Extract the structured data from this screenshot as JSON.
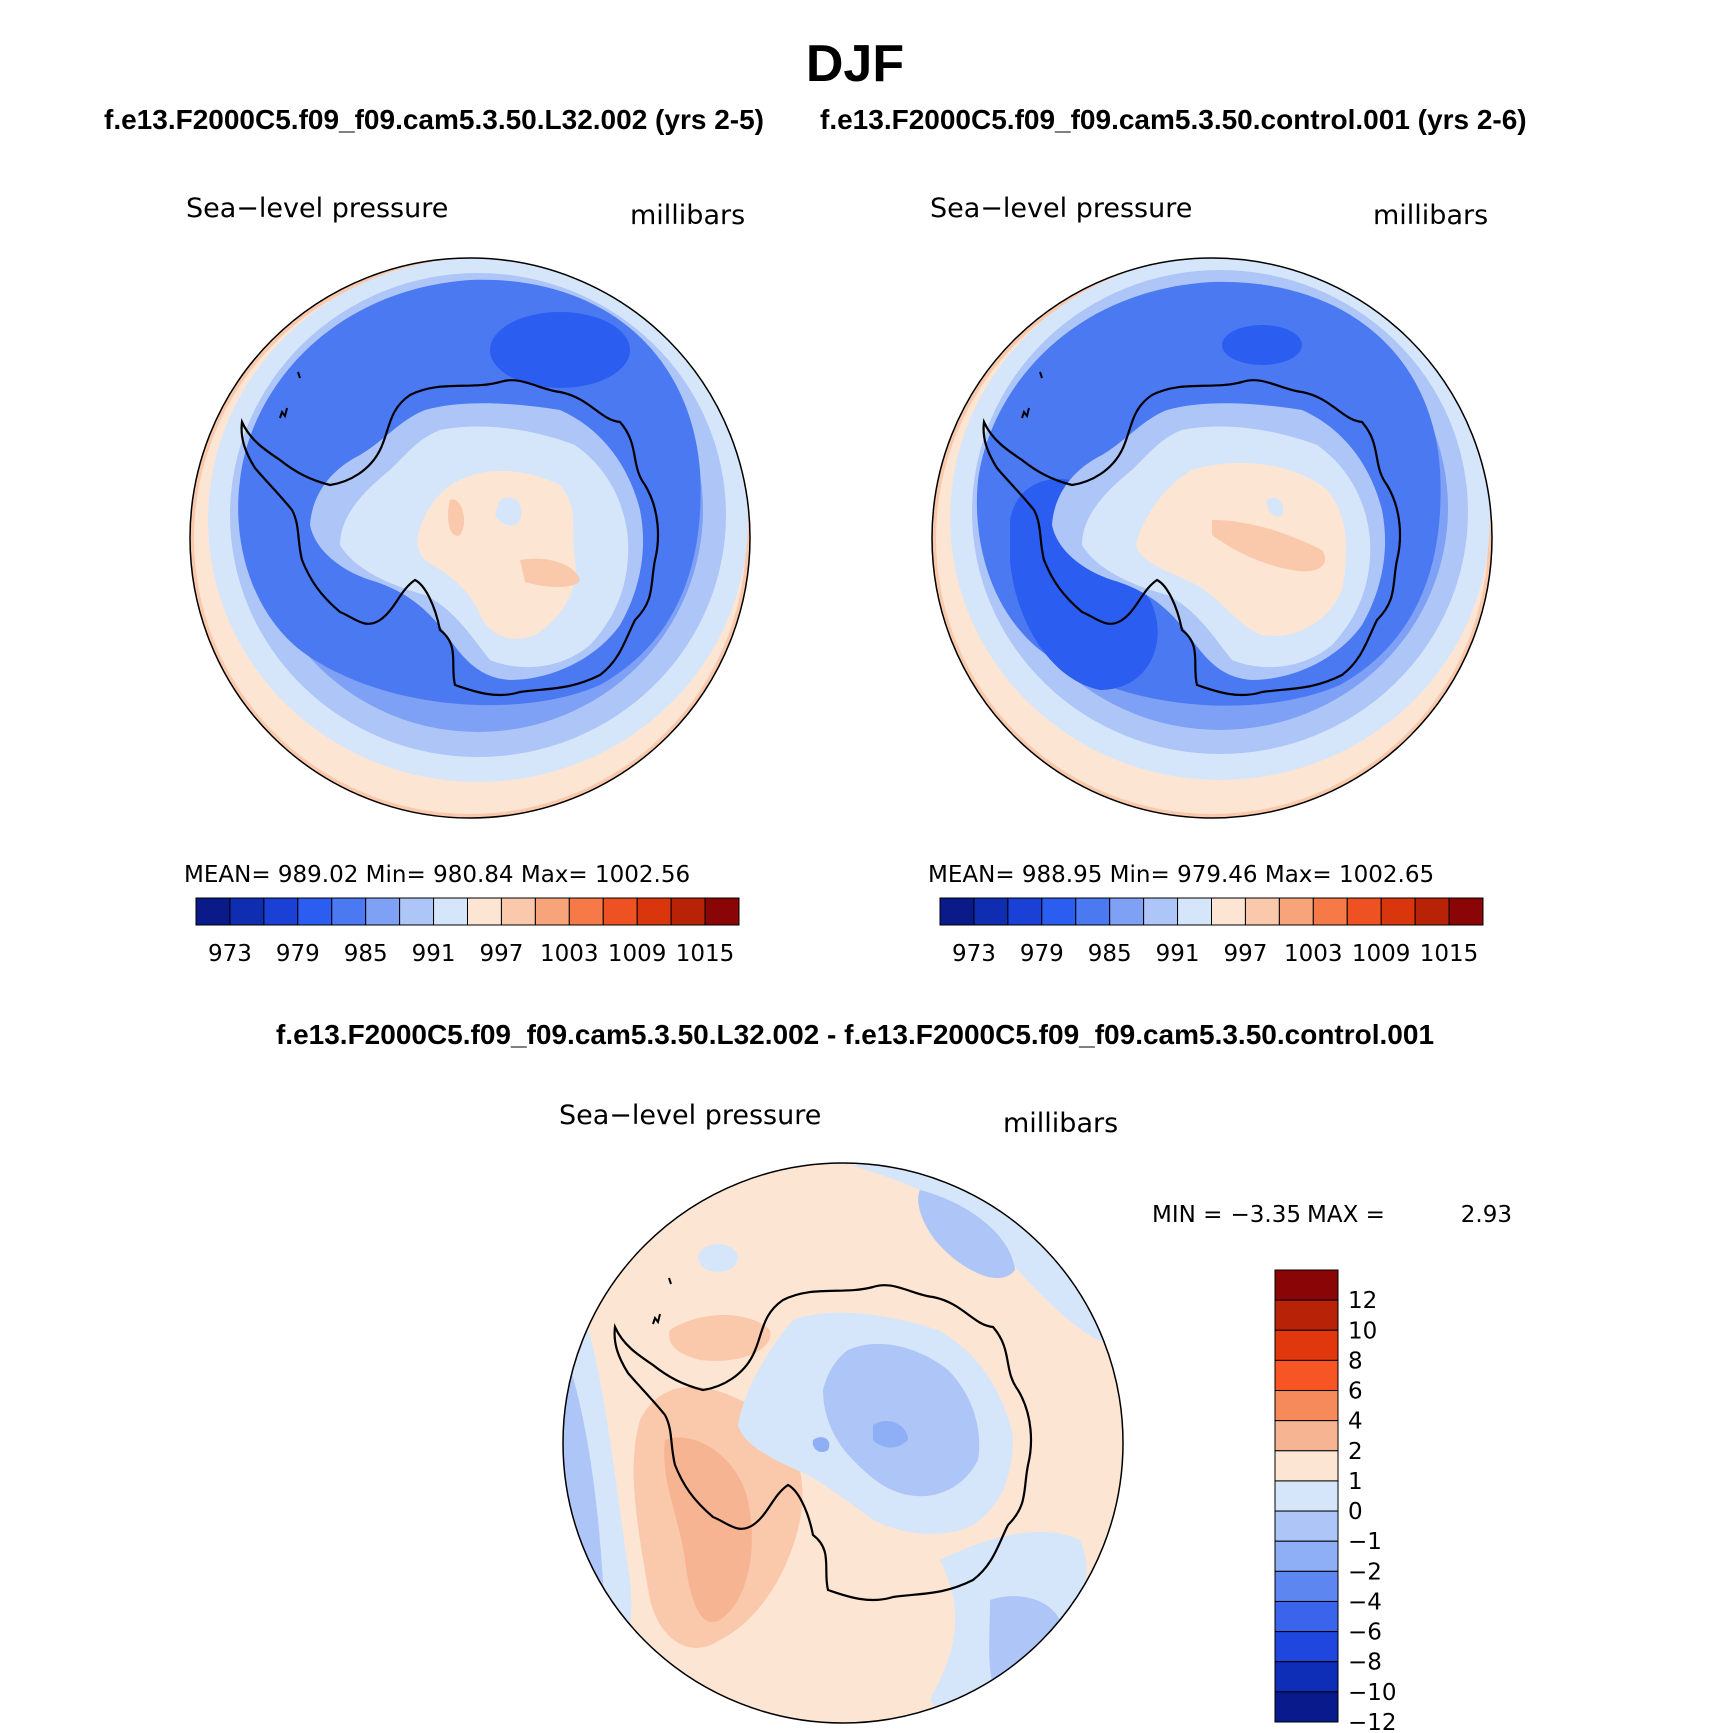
{
  "title": "DJF",
  "panels": [
    {
      "case": "f.e13.F2000C5.f09_f09.cam5.3.50.L32.002 (yrs 2-5)",
      "variable": "Sea−level pressure",
      "units": "millibars",
      "stats": {
        "mean": "989.02",
        "min": "980.84",
        "max": "1002.56"
      },
      "stats_text": "MEAN= 989.02   Min= 980.84   Max= 1002.56",
      "colorbar_labels": [
        "973",
        "979",
        "985",
        "991",
        "997",
        "1003",
        "1009",
        "1015"
      ]
    },
    {
      "case": "f.e13.F2000C5.f09_f09.cam5.3.50.control.001 (yrs 2-6)",
      "variable": "Sea−level pressure",
      "units": "millibars",
      "stats": {
        "mean": "988.95",
        "min": "979.46",
        "max": "1002.65"
      },
      "stats_text": "MEAN= 988.95   Min= 979.46   Max= 1002.65",
      "colorbar_labels": [
        "973",
        "979",
        "985",
        "991",
        "997",
        "1003",
        "1009",
        "1015"
      ]
    }
  ],
  "colorbar_colors": [
    "#0a1a88",
    "#0f2db0",
    "#1a40d6",
    "#2b5ef0",
    "#4a79f2",
    "#7ea1f5",
    "#aec6f7",
    "#d6e6fa",
    "#fde5d3",
    "#fac8ab",
    "#f7a47a",
    "#f57a47",
    "#ee5222",
    "#da360d",
    "#b82207",
    "#8a0606"
  ],
  "difference": {
    "title": "f.e13.F2000C5.f09_f09.cam5.3.50.L32.002 - f.e13.F2000C5.f09_f09.cam5.3.50.control.001",
    "variable": "Sea−level pressure",
    "units": "millibars",
    "min_label": "MIN =",
    "min": "−3.35",
    "max_label": "MAX =",
    "max": "2.93",
    "colorbar_labels": [
      "12",
      "10",
      "8",
      "6",
      "4",
      "2",
      "1",
      "0",
      "−1",
      "−2",
      "−4",
      "−6",
      "−8",
      "−10",
      "−12"
    ],
    "colorbar_colors": [
      "#8a0606",
      "#b82207",
      "#e0370d",
      "#f75523",
      "#f78a5a",
      "#f7b493",
      "#fde5d3",
      "#d6e6fa",
      "#aec6f7",
      "#8eaef5",
      "#5d86f0",
      "#3a64ec",
      "#1f47e0",
      "#0f2eb8",
      "#081a8c"
    ]
  },
  "chart_data": [
    {
      "type": "heatmap",
      "title": "f.e13.F2000C5.f09_f09.cam5.3.50.L32.002 (yrs 2-5)",
      "variable": "Sea−level pressure",
      "units": "millibars",
      "mean": 989.02,
      "min": 980.84,
      "max": 1002.56,
      "levels": [
        973,
        979,
        985,
        991,
        997,
        1003,
        1009,
        1015
      ]
    },
    {
      "type": "heatmap",
      "title": "f.e13.F2000C5.f09_f09.cam5.3.50.control.001 (yrs 2-6)",
      "variable": "Sea−level pressure",
      "units": "millibars",
      "mean": 988.95,
      "min": 979.46,
      "max": 1002.65,
      "levels": [
        973,
        979,
        985,
        991,
        997,
        1003,
        1009,
        1015
      ]
    },
    {
      "type": "heatmap",
      "title": "f.e13.F2000C5.f09_f09.cam5.3.50.L32.002 - f.e13.F2000C5.f09_f09.cam5.3.50.control.001",
      "variable": "Sea−level pressure",
      "units": "millibars",
      "min": -3.35,
      "max": 2.93,
      "levels": [
        12,
        10,
        8,
        6,
        4,
        2,
        1,
        0,
        -1,
        -2,
        -4,
        -6,
        -8,
        -10,
        -12
      ]
    }
  ]
}
